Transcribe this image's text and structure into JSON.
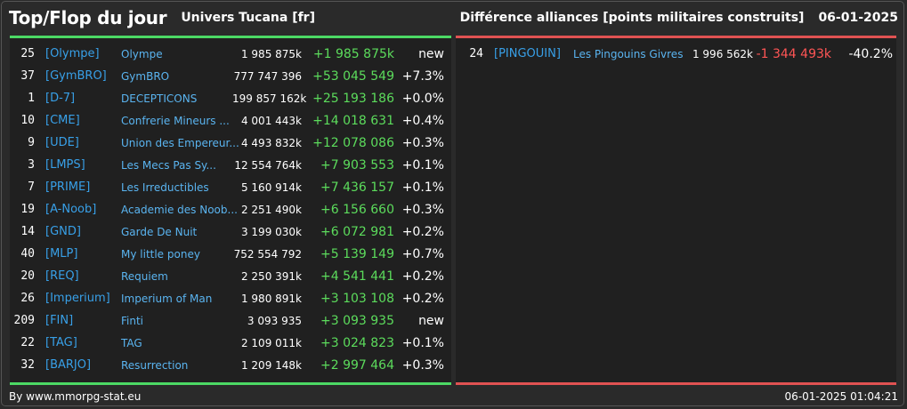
{
  "header": {
    "title": "Top/Flop du jour",
    "universe": "Univers Tucana [fr]",
    "subtitle": "Différence alliances [points militaires construits]",
    "date": "06-01-2025"
  },
  "colors": {
    "positive": "#5cdc5c",
    "negative": "#ff5555",
    "tag": "#38a0e8",
    "top_bar": "#4cd964",
    "flop_bar": "#e05252"
  },
  "top": [
    {
      "rank": "25",
      "tag": "[Olympe]",
      "name": "Olympe",
      "points": "1 985 875k",
      "diff": "+1 985 875k",
      "pct": "new"
    },
    {
      "rank": "37",
      "tag": "[GymBRO]",
      "name": "GymBRO",
      "points": "777 747 396",
      "diff": "+53 045 549",
      "pct": "+7.3%"
    },
    {
      "rank": "1",
      "tag": "[D-7]",
      "name": "DECEPTICONS",
      "points": "199 857 162k",
      "diff": "+25 193 186",
      "pct": "+0.0%"
    },
    {
      "rank": "10",
      "tag": "[CME]",
      "name": "Confrerie Mineurs ...",
      "points": "4 001 443k",
      "diff": "+14 018 631",
      "pct": "+0.4%"
    },
    {
      "rank": "9",
      "tag": "[UDE]",
      "name": "Union des Empereur...",
      "points": "4 493 832k",
      "diff": "+12 078 086",
      "pct": "+0.3%"
    },
    {
      "rank": "3",
      "tag": "[LMPS]",
      "name": "Les Mecs Pas Sy...",
      "points": "12 554 764k",
      "diff": "+7 903 553",
      "pct": "+0.1%"
    },
    {
      "rank": "7",
      "tag": "[PRIME]",
      "name": "Les Irreductibles",
      "points": "5 160 914k",
      "diff": "+7 436 157",
      "pct": "+0.1%"
    },
    {
      "rank": "19",
      "tag": "[A-Noob]",
      "name": "Academie des Noob...",
      "points": "2 251 490k",
      "diff": "+6 156 660",
      "pct": "+0.3%"
    },
    {
      "rank": "14",
      "tag": "[GND]",
      "name": "Garde De Nuit",
      "points": "3 199 030k",
      "diff": "+6 072 981",
      "pct": "+0.2%"
    },
    {
      "rank": "40",
      "tag": "[MLP]",
      "name": "My little poney",
      "points": "752 554 792",
      "diff": "+5 139 149",
      "pct": "+0.7%"
    },
    {
      "rank": "20",
      "tag": "[REQ]",
      "name": "Requiem",
      "points": "2 250 391k",
      "diff": "+4 541 441",
      "pct": "+0.2%"
    },
    {
      "rank": "26",
      "tag": "[Imperium]",
      "name": "Imperium of Man",
      "points": "1 980 891k",
      "diff": "+3 103 108",
      "pct": "+0.2%"
    },
    {
      "rank": "209",
      "tag": "[FIN]",
      "name": "Finti",
      "points": "3 093 935",
      "diff": "+3 093 935",
      "pct": "new"
    },
    {
      "rank": "22",
      "tag": "[TAG]",
      "name": "TAG",
      "points": "2 109 011k",
      "diff": "+3 024 823",
      "pct": "+0.1%"
    },
    {
      "rank": "32",
      "tag": "[BARJO]",
      "name": "Resurrection",
      "points": "1 209 148k",
      "diff": "+2 997 464",
      "pct": "+0.3%"
    }
  ],
  "flop": [
    {
      "rank": "24",
      "tag": "[PINGOUIN]",
      "name": "Les Pingouins Givres",
      "points": "1 996 562k",
      "diff": "-1 344 493k",
      "pct": "-40.2%"
    }
  ],
  "footer": {
    "credit": "By www.mmorpg-stat.eu",
    "timestamp": "06-01-2025 01:04:21"
  }
}
